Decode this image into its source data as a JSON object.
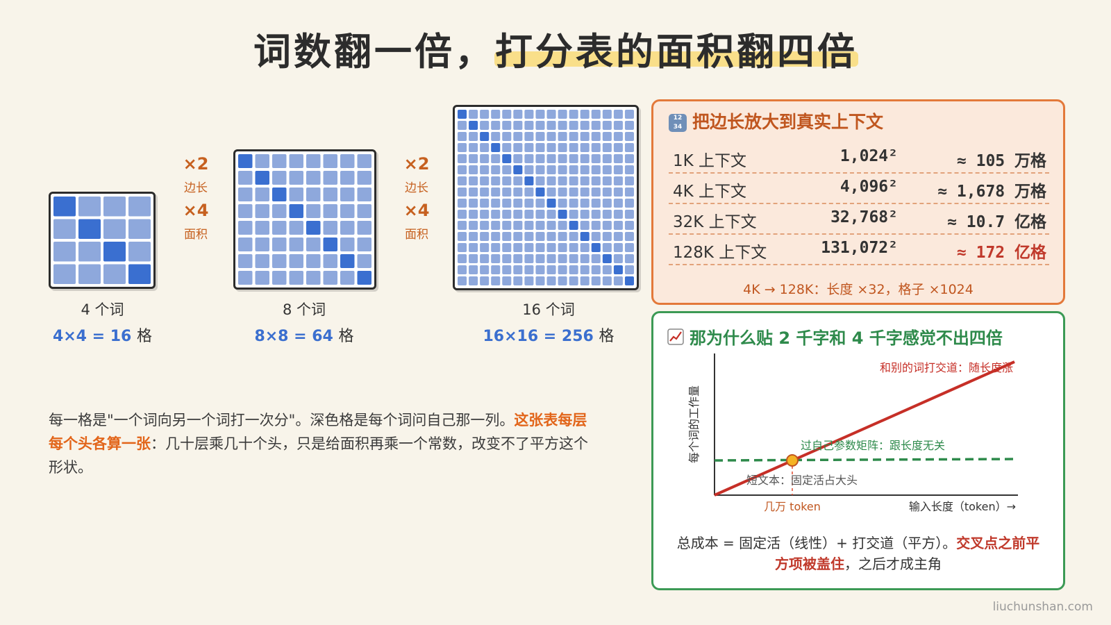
{
  "title": "词数翻一倍，打分表的面积翻四倍",
  "grids": [
    {
      "n": 4,
      "words_label": "4 个词",
      "formula": "4×4 = 16",
      "unit": "格"
    },
    {
      "n": 8,
      "words_label": "8 个词",
      "formula": "8×8 = 64",
      "unit": "格"
    },
    {
      "n": 16,
      "words_label": "16 个词",
      "formula": "16×16 = 256",
      "unit": "格"
    }
  ],
  "multipliers": [
    {
      "side_factor": "×2",
      "side_label": "边长",
      "area_factor": "×4",
      "area_label": "面积"
    },
    {
      "side_factor": "×2",
      "side_label": "边长",
      "area_factor": "×4",
      "area_label": "面积"
    }
  ],
  "explanation": {
    "text1": "每一格是\"一个词向另一个词打一次分\"。深色格是每个词问自己那一列。",
    "highlight": "这张表每层每个头各算一张",
    "text2": "：几十层乘几十个头，只是给面积再乘一个常数，改变不了平方这个形状。"
  },
  "context_panel": {
    "title": "把边长放大到真实上下文",
    "icon": "numbers-icon",
    "rows": [
      {
        "label": "1K 上下文",
        "value": "1,024²",
        "cells": "≈ 105 万格",
        "highlight": false
      },
      {
        "label": "4K 上下文",
        "value": "4,096²",
        "cells": "≈ 1,678 万格",
        "highlight": false
      },
      {
        "label": "32K 上下文",
        "value": "32,768²",
        "cells": "≈ 10.7 亿格",
        "highlight": false
      },
      {
        "label": "128K 上下文",
        "value": "131,072²",
        "cells": "≈ 172 亿格",
        "highlight": true
      }
    ],
    "note": "4K → 128K：长度 ×32，格子 ×1024"
  },
  "cost_panel": {
    "title": "那为什么贴 2 千字和 4 千字感觉不出四倍",
    "icon": "chart-icon",
    "caption_text": "总成本 = 固定活（线性）+ 打交道（平方）。",
    "caption_highlight1": "交叉点之前平",
    "caption_highlight2": "方项被盖住",
    "caption_text2": "，之后才成主角"
  },
  "chart_data": {
    "type": "line",
    "xlabel": "输入长度（token）→",
    "ylabel": "每个词的工作量",
    "series": [
      {
        "name": "和别的词打交道：随长度涨",
        "color": "#c62f27",
        "style": "solid"
      },
      {
        "name": "过自己参数矩阵：跟长度无关",
        "color": "#2e8a4b",
        "style": "dashed"
      }
    ],
    "annotations": [
      {
        "text": "短文本：固定活占大头"
      },
      {
        "text": "几万 token"
      }
    ],
    "crossover_point": {
      "label": "几万 token"
    }
  },
  "watermark": "liuchunshan.com",
  "colors": {
    "cell_light": "#8ea8dc",
    "cell_dark": "#3a6fd0",
    "accent_orange": "#e2651a",
    "accent_green": "#2e8a4b",
    "accent_red": "#c0392b",
    "formula_blue": "#3b6fcf"
  }
}
